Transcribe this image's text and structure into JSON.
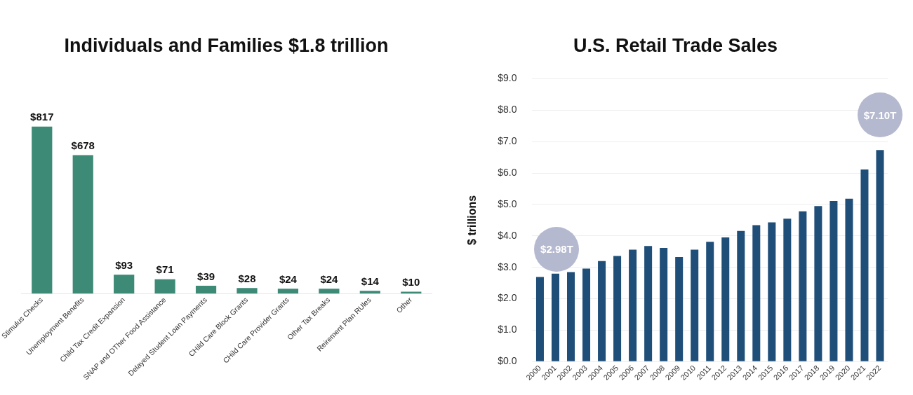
{
  "chart_data": [
    {
      "type": "bar",
      "title": "Individuals and Families $1.8 trillion",
      "categories": [
        "Stimulus Checks",
        "Unemployment Benefits",
        "Child Tax Credit Expansion",
        "SNAP and OTher Food Assistance",
        "Delayed Student Loan Payments",
        "CHild Care Block Grants",
        "CHild Care Provider Grants",
        "Other Tax Breaks",
        "Reirement Plan RUles",
        "Other"
      ],
      "values": [
        817,
        678,
        93,
        71,
        39,
        28,
        24,
        24,
        14,
        10
      ],
      "value_labels": [
        "$817",
        "$678",
        "$93",
        "$71",
        "$39",
        "$28",
        "$24",
        "$24",
        "$14",
        "$10"
      ],
      "color": "#3d8a76",
      "tick_labels": "x",
      "legend": false
    },
    {
      "type": "bar",
      "title": "U.S. Retail Trade Sales",
      "ylabel": "$ trillions",
      "categories": [
        "2000",
        "2001",
        "2002",
        "2003",
        "2004",
        "2005",
        "2006",
        "2007",
        "2008",
        "2009",
        "2010",
        "2011",
        "2012",
        "2013",
        "2014",
        "2015",
        "2016",
        "2017",
        "2018",
        "2019",
        "2020",
        "2021",
        "2022"
      ],
      "values": [
        2.69,
        2.8,
        2.85,
        2.96,
        3.2,
        3.36,
        3.56,
        3.68,
        3.62,
        3.33,
        3.56,
        3.81,
        3.95,
        4.16,
        4.34,
        4.43,
        4.55,
        4.78,
        4.95,
        5.11,
        5.18,
        6.11,
        6.73
      ],
      "color": "#1f4e79",
      "ylim": [
        0,
        9
      ],
      "yticks": [
        {
          "value": 0,
          "label": "$0.0"
        },
        {
          "value": 1,
          "label": "$1.0"
        },
        {
          "value": 2,
          "label": "$2.0"
        },
        {
          "value": 3,
          "label": "$3.0"
        },
        {
          "value": 4,
          "label": "$4.0"
        },
        {
          "value": 5,
          "label": "$5.0"
        },
        {
          "value": 6,
          "label": "$6.0"
        },
        {
          "value": 7,
          "label": "$7.0"
        },
        {
          "value": 8,
          "label": "$8.0"
        },
        {
          "value": 9,
          "label": "$9.0"
        }
      ],
      "grid": "y",
      "legend": false,
      "annotations": [
        "$2.98T",
        "$7.10T"
      ]
    }
  ]
}
